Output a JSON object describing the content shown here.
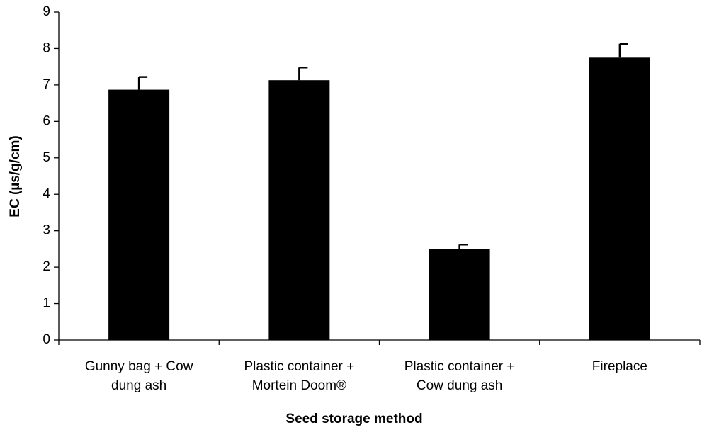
{
  "chart_data": {
    "type": "bar",
    "categories": [
      [
        "Gunny bag + Cow",
        "dung ash"
      ],
      [
        "Plastic container +",
        "Mortein Doom®"
      ],
      [
        "Plastic container +",
        "Cow dung ash"
      ],
      [
        "Fireplace"
      ]
    ],
    "values": [
      6.87,
      7.13,
      2.5,
      7.75
    ],
    "errors": [
      0.35,
      0.35,
      0.12,
      0.38
    ],
    "color": "#000000",
    "ylim": [
      0,
      9
    ],
    "yticks": [
      0,
      1,
      2,
      3,
      4,
      5,
      6,
      7,
      8,
      9
    ],
    "ylabel": "EC (µs/g/cm)",
    "xlabel": "Seed storage method",
    "grid": false
  }
}
